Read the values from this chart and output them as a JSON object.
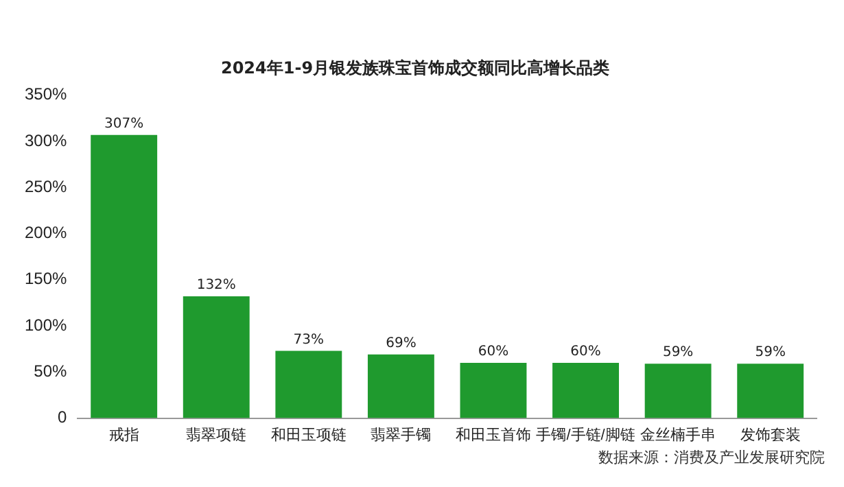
{
  "chart_data": {
    "type": "bar",
    "title": "2024年1-9月银发族珠宝首饰成交额同比高增长品类",
    "categories": [
      "戒指",
      "翡翠项链",
      "和田玉项链",
      "翡翠手镯",
      "和田玉首饰",
      "手镯/手链/脚链",
      "金丝楠手串",
      "发饰套装"
    ],
    "values": [
      307,
      132,
      73,
      69,
      60,
      60,
      59,
      59
    ],
    "value_labels": [
      "307%",
      "132%",
      "73%",
      "69%",
      "60%",
      "60%",
      "59%",
      "59%"
    ],
    "color": "#1f9a2e",
    "ylim": [
      0,
      350
    ],
    "yticks": [
      {
        "value": 0,
        "label": "0"
      },
      {
        "value": 50,
        "label": "50%"
      },
      {
        "value": 100,
        "label": "100%"
      },
      {
        "value": 150,
        "label": "150%"
      },
      {
        "value": 200,
        "label": "200%"
      },
      {
        "value": 250,
        "label": "250%"
      },
      {
        "value": 300,
        "label": "300%"
      },
      {
        "value": 350,
        "label": "350%"
      }
    ],
    "grid": false,
    "annotations": [
      "数据来源：消费及产业发展研究院"
    ]
  }
}
